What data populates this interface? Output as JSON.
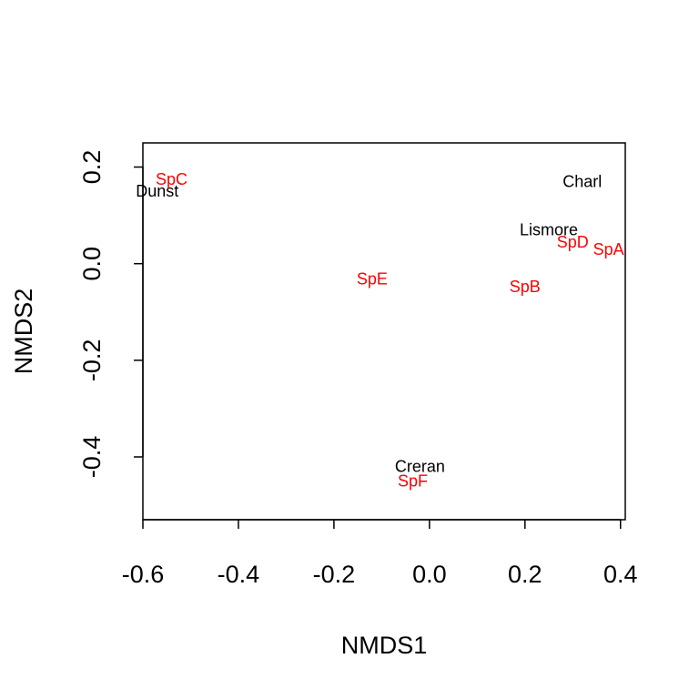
{
  "chart_data": {
    "type": "scatter",
    "xlabel": "NMDS1",
    "ylabel": "NMDS2",
    "xlim": [
      -0.6,
      0.41
    ],
    "ylim": [
      -0.53,
      0.25
    ],
    "xticks": [
      "-0.6",
      "-0.4",
      "-0.2",
      "0.0",
      "0.2",
      "0.4"
    ],
    "yticks": [
      "-0.4",
      "-0.2",
      "0.0",
      "0.2"
    ],
    "xtick_values": [
      -0.6,
      -0.4,
      -0.2,
      0.0,
      0.2,
      0.4
    ],
    "ytick_values": [
      -0.4,
      -0.2,
      0.0,
      0.2
    ],
    "series": [
      {
        "color": "#000000",
        "points": [
          {
            "label": "Dunst",
            "x": -0.57,
            "y": 0.15
          },
          {
            "label": "Charl",
            "x": 0.32,
            "y": 0.17
          },
          {
            "label": "Lismore",
            "x": 0.25,
            "y": 0.07
          },
          {
            "label": "Creran",
            "x": -0.02,
            "y": -0.42
          }
        ]
      },
      {
        "color": "#ff0000",
        "points": [
          {
            "label": "SpC",
            "x": -0.54,
            "y": 0.175
          },
          {
            "label": "SpD",
            "x": 0.3,
            "y": 0.045
          },
          {
            "label": "SpA",
            "x": 0.375,
            "y": 0.03
          },
          {
            "label": "SpE",
            "x": -0.12,
            "y": -0.032
          },
          {
            "label": "SpB",
            "x": 0.2,
            "y": -0.048
          },
          {
            "label": "SpF",
            "x": -0.035,
            "y": -0.45
          }
        ]
      }
    ]
  }
}
